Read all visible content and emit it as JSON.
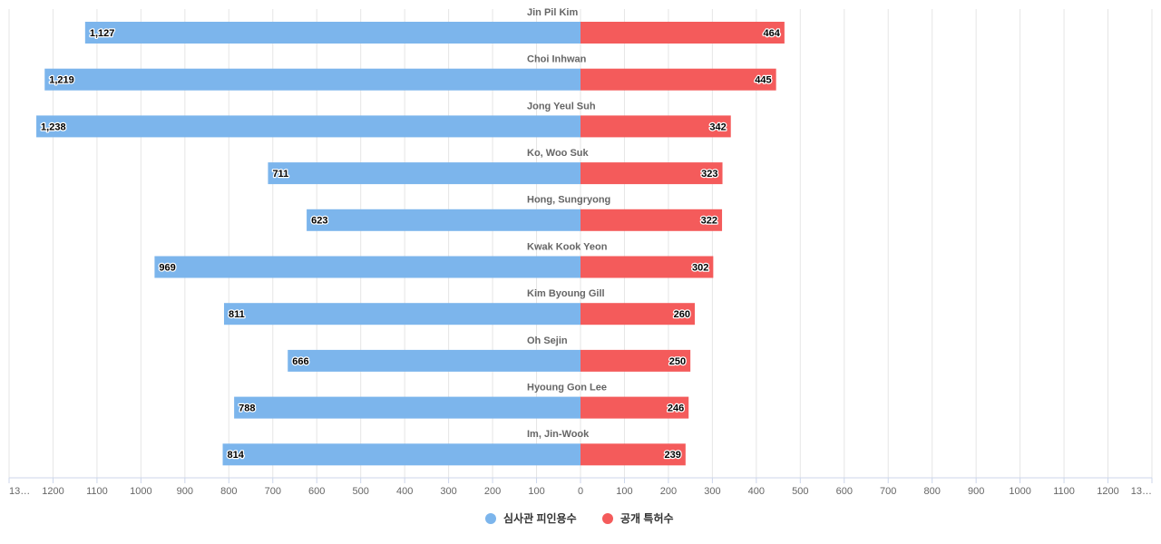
{
  "chart_data": {
    "type": "butterfly-bar",
    "categories": [
      "Jin Pil Kim",
      "Choi Inhwan",
      "Jong Yeul Suh",
      "Ko, Woo Suk",
      "Hong, Sungryong",
      "Kwak Kook Yeon",
      "Kim Byoung Gill",
      "Oh Sejin",
      "Hyoung Gon Lee",
      "Im, Jin-Wook"
    ],
    "series": [
      {
        "name": "심사관 피인용수",
        "color": "#7cb5ec",
        "values": [
          1127,
          1219,
          1238,
          711,
          623,
          969,
          811,
          666,
          788,
          814
        ],
        "value_labels": [
          "1,127",
          "1,219",
          "1,238",
          "711",
          "623",
          "969",
          "811",
          "666",
          "788",
          "814"
        ]
      },
      {
        "name": "공개 특허수",
        "color": "#f45b5b",
        "values": [
          464,
          445,
          342,
          323,
          322,
          302,
          260,
          250,
          246,
          239
        ]
      }
    ],
    "xlim": [
      -1300,
      1300
    ],
    "xticks": [
      {
        "value": -1300,
        "label": "13…"
      },
      {
        "value": -1200,
        "label": "1200"
      },
      {
        "value": -1100,
        "label": "1100"
      },
      {
        "value": -1000,
        "label": "1000"
      },
      {
        "value": -900,
        "label": "900"
      },
      {
        "value": -800,
        "label": "800"
      },
      {
        "value": -700,
        "label": "700"
      },
      {
        "value": -600,
        "label": "600"
      },
      {
        "value": -500,
        "label": "500"
      },
      {
        "value": -400,
        "label": "400"
      },
      {
        "value": -300,
        "label": "300"
      },
      {
        "value": -200,
        "label": "200"
      },
      {
        "value": -100,
        "label": "100"
      },
      0,
      100,
      200,
      300,
      400,
      500,
      600,
      700,
      800,
      900,
      1000,
      1100,
      1200,
      {
        "value": 1300,
        "label": "13…"
      }
    ],
    "grid": true
  }
}
